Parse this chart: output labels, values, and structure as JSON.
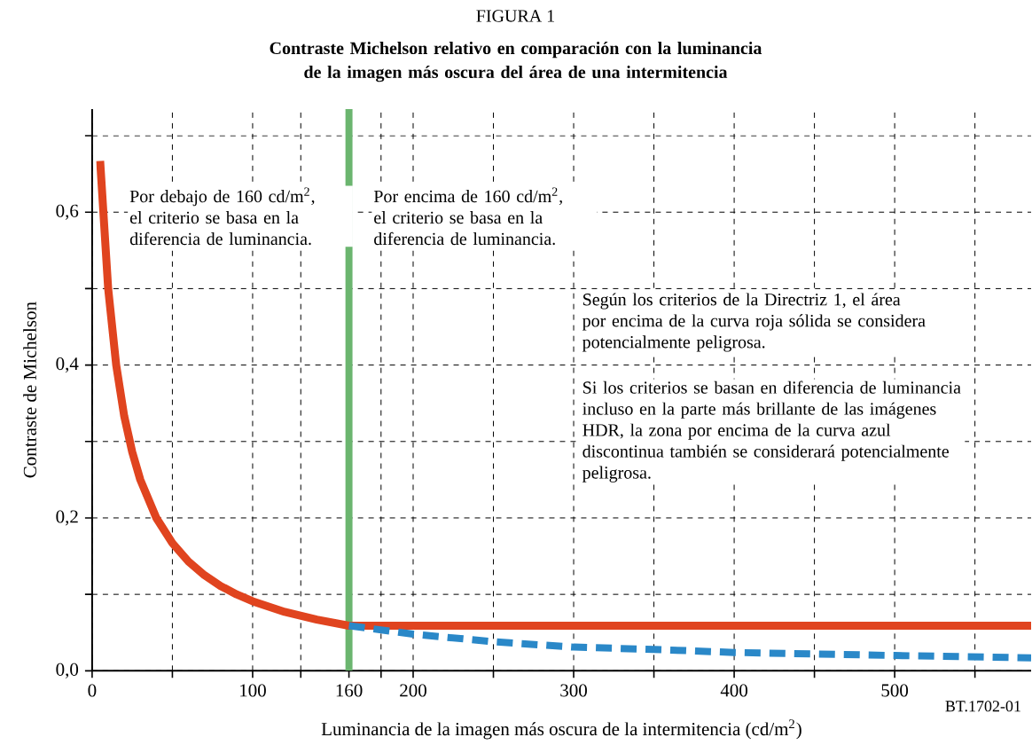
{
  "chart_data": {
    "type": "line",
    "title": "FIGURA 1",
    "subtitle": "Contraste Michelson relativo en comparación con la luminancia de la imagen más oscura del área de una intermitencia",
    "xlabel": "Luminancia de la imagen más oscura de la intermitencia (cd/m$^{2}$)",
    "ylabel": "Contraste de Michelson",
    "xlim": [
      0,
      585
    ],
    "ylim": [
      0,
      0.735
    ],
    "xticks": [
      0,
      {
        "value": 50,
        "label": null
      },
      100,
      {
        "value": 130,
        "label": null
      },
      160,
      {
        "value": 180,
        "label": null
      },
      200,
      {
        "value": 250,
        "label": null
      },
      300,
      {
        "value": 350,
        "label": null
      },
      400,
      {
        "value": 450,
        "label": null
      },
      500,
      {
        "value": 550,
        "label": null
      }
    ],
    "yticks": [
      {
        "value": 0,
        "label": "0,0"
      },
      {
        "value": 0.1,
        "label": null
      },
      {
        "value": 0.2,
        "label": "0,2"
      },
      {
        "value": 0.3,
        "label": null
      },
      {
        "value": 0.4,
        "label": "0,4"
      },
      {
        "value": 0.5,
        "label": null
      },
      {
        "value": 0.6,
        "label": "0,6"
      },
      {
        "value": 0.7,
        "label": null
      }
    ],
    "grid": true,
    "series": [
      {
        "color": "#e0441f",
        "line_style": "solid",
        "x": [
          5,
          10,
          15,
          20,
          25,
          30,
          40,
          50,
          60,
          70,
          80,
          90,
          100,
          120,
          140,
          160,
          585
        ],
        "values": [
          0.667,
          0.5,
          0.4,
          0.333,
          0.286,
          0.25,
          0.2,
          0.167,
          0.143,
          0.125,
          0.111,
          0.1,
          0.091,
          0.077,
          0.067,
          0.059,
          0.059
        ]
      },
      {
        "color": "#2a88c8",
        "line_style": "dashed",
        "x": [
          160,
          200,
          250,
          300,
          350,
          400,
          450,
          500,
          585
        ],
        "values": [
          0.059,
          0.048,
          0.038,
          0.031,
          0.028,
          0.024,
          0.022,
          0.02,
          0.017
        ]
      }
    ],
    "ref_lines": [
      {
        "axis": "x",
        "value": 160,
        "color": "#6bb56f"
      }
    ],
    "annotations": [
      "Por debajo de 160 cd/m$^{2}$, el criterio se basa en la diferencia de luminancia.",
      "Por encima de 160 cd/m$^{2}$, el criterio se basa en la diferencia de luminancia.",
      "Según los criterios de la Directriz 1, el área por encima de la curva roja sólida se considera potencialmente peligrosa.",
      "Si los criterios se basan en diferencia de luminancia incluso en la parte más brillante de las imágenes HDR, la zona por encima de la curva azul discontinua también se considerará potencialmente peligrosa.",
      "BT.1702-01"
    ]
  }
}
